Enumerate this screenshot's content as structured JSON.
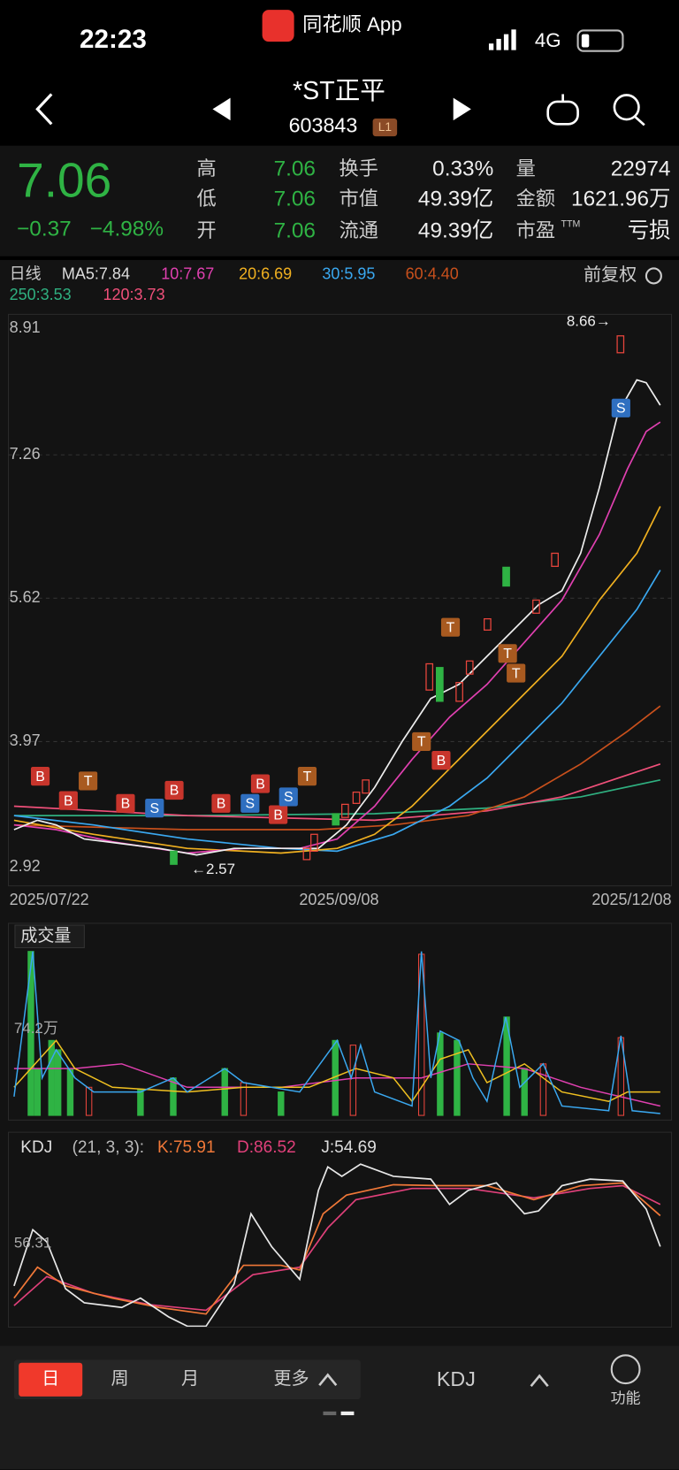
{
  "status": {
    "time": "22:23",
    "app": "同花顺 App",
    "network": "4G"
  },
  "header": {
    "name": "*ST正平",
    "code": "603843",
    "badge": "L1"
  },
  "quote": {
    "price": "7.06",
    "change": "−0.37",
    "change_pct": "−4.98%",
    "fields": [
      {
        "label": "高",
        "value": "7.06"
      },
      {
        "label": "换手",
        "value": "0.33%"
      },
      {
        "label": "量",
        "value": "22974"
      },
      {
        "label": "低",
        "value": "7.06"
      },
      {
        "label": "市值",
        "value": "49.39亿"
      },
      {
        "label": "金额",
        "value": "1621.96万"
      },
      {
        "label": "开",
        "value": "7.06"
      },
      {
        "label": "流通",
        "value": "49.39亿"
      },
      {
        "label": "市盈",
        "value": "亏损"
      }
    ],
    "ttm": "TTM"
  },
  "indicators": [
    "日线",
    "MA5:7.84",
    "10:7.67",
    "20:6.69",
    "30:5.95",
    "60:4.40",
    "250:3.53",
    "120:3.73"
  ],
  "adjust": "前复权",
  "price_axis": [
    "8.91",
    "7.26",
    "5.62",
    "3.97",
    "2.92"
  ],
  "dates": [
    "2025/07/22",
    "2025/09/08",
    "2025/12/08"
  ],
  "high_mark": "8.66→",
  "low_mark": "←2.57",
  "signals": [
    "B",
    "B",
    "T",
    "B",
    "S",
    "B",
    "B",
    "S",
    "B",
    "B",
    "S",
    "T",
    "T",
    "T",
    "B",
    "T",
    "T",
    "S"
  ],
  "volume": {
    "title": "成交量",
    "axis": "74.2万"
  },
  "kdj": {
    "name": "KDJ",
    "params": "(21, 3, 3):",
    "k": "K:75.91",
    "d": "D:86.52",
    "j": "J:54.69",
    "axis": "56.31"
  },
  "tabs": [
    "日",
    "周",
    "月",
    "更多"
  ],
  "bottom": {
    "indicator": "KDJ",
    "function": "功能"
  }
}
